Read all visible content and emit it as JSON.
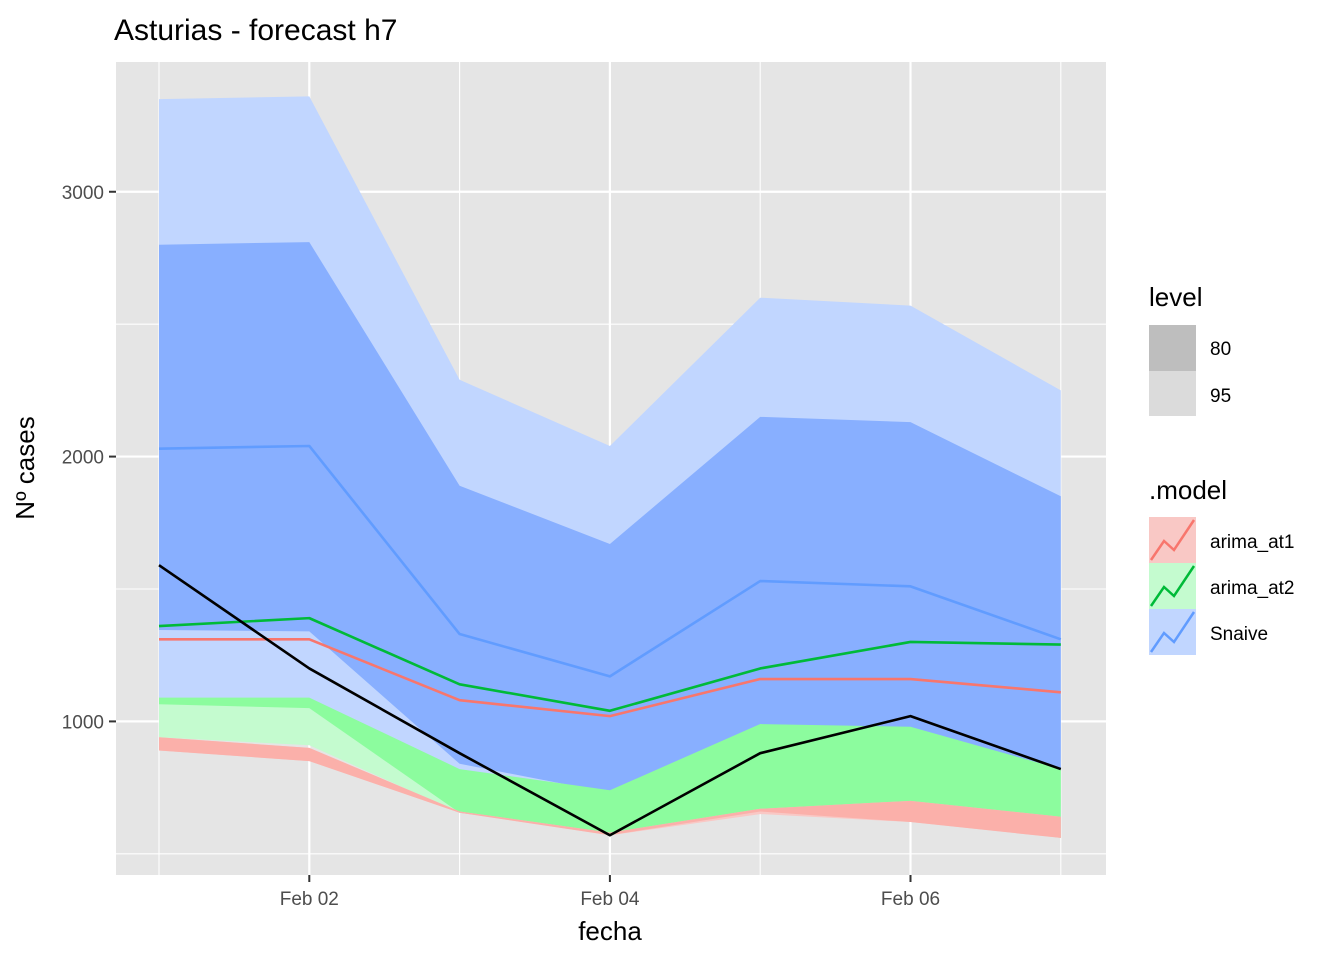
{
  "chart_data": {
    "type": "area",
    "title": "Asturias - forecast h7",
    "xlabel": "fecha",
    "ylabel": "Nº cases",
    "x": [
      "Feb 01",
      "Feb 02",
      "Feb 03",
      "Feb 04",
      "Feb 05",
      "Feb 06",
      "Feb 07"
    ],
    "x_ticks": [
      "Feb 02",
      "Feb 04",
      "Feb 06"
    ],
    "y_ticks": [
      1000,
      2000,
      3000
    ],
    "ylim": [
      420,
      3490
    ],
    "grid": true,
    "legend_placement": "right",
    "actual": {
      "color": "#000000",
      "values": [
        1590,
        1200,
        880,
        570,
        880,
        1020,
        820
      ]
    },
    "series": [
      {
        "name": "Snaive",
        "color": "#619CFF",
        "fill_95": "#C1D6FF",
        "fill_80": "#88AFFF",
        "mean": [
          2030,
          2040,
          1330,
          1170,
          1530,
          1510,
          1310
        ],
        "lo80": [
          1345,
          1340,
          840,
          730,
          980,
          970,
          820
        ],
        "hi80": [
          2800,
          2810,
          1890,
          1670,
          2150,
          2130,
          1850
        ],
        "lo95": [
          1080,
          1060,
          655,
          580,
          660,
          640,
          560
        ],
        "hi95": [
          3350,
          3360,
          2290,
          2040,
          2600,
          2570,
          2250
        ]
      },
      {
        "name": "arima_at2",
        "color": "#00BA38",
        "fill_95": "#C4FBCF",
        "fill_80": "#8CFC9E",
        "mean": [
          1360,
          1390,
          1140,
          1040,
          1200,
          1300,
          1290
        ],
        "lo80": [
          1065,
          1050,
          655,
          580,
          660,
          640,
          560
        ],
        "hi80": [
          1090,
          1090,
          820,
          740,
          990,
          980,
          820
        ],
        "lo95": [
          940,
          910,
          655,
          580,
          780,
          770,
          680
        ],
        "hi95": [
          1080,
          1070,
          750,
          700,
          980,
          970,
          820
        ]
      },
      {
        "name": "arima_at1",
        "color": "#F8766D",
        "fill_95": "#F9C8C5",
        "fill_80": "#FBB0AA",
        "mean": [
          1310,
          1310,
          1080,
          1020,
          1160,
          1160,
          1110
        ],
        "lo80": [
          890,
          850,
          655,
          570,
          660,
          620,
          560
        ],
        "hi80": [
          940,
          900,
          660,
          580,
          670,
          700,
          640
        ],
        "lo95": [
          890,
          850,
          655,
          570,
          650,
          620,
          560
        ],
        "hi95": [
          940,
          900,
          660,
          580,
          670,
          700,
          640
        ]
      }
    ],
    "legends": {
      "level": {
        "title": "level",
        "items": [
          "80",
          "95"
        ],
        "colors": [
          "#BEBEBE",
          "#DBDBDB"
        ]
      },
      "model": {
        "title": ".model",
        "items": [
          "arima_at1",
          "arima_at2",
          "Snaive"
        ]
      }
    }
  }
}
